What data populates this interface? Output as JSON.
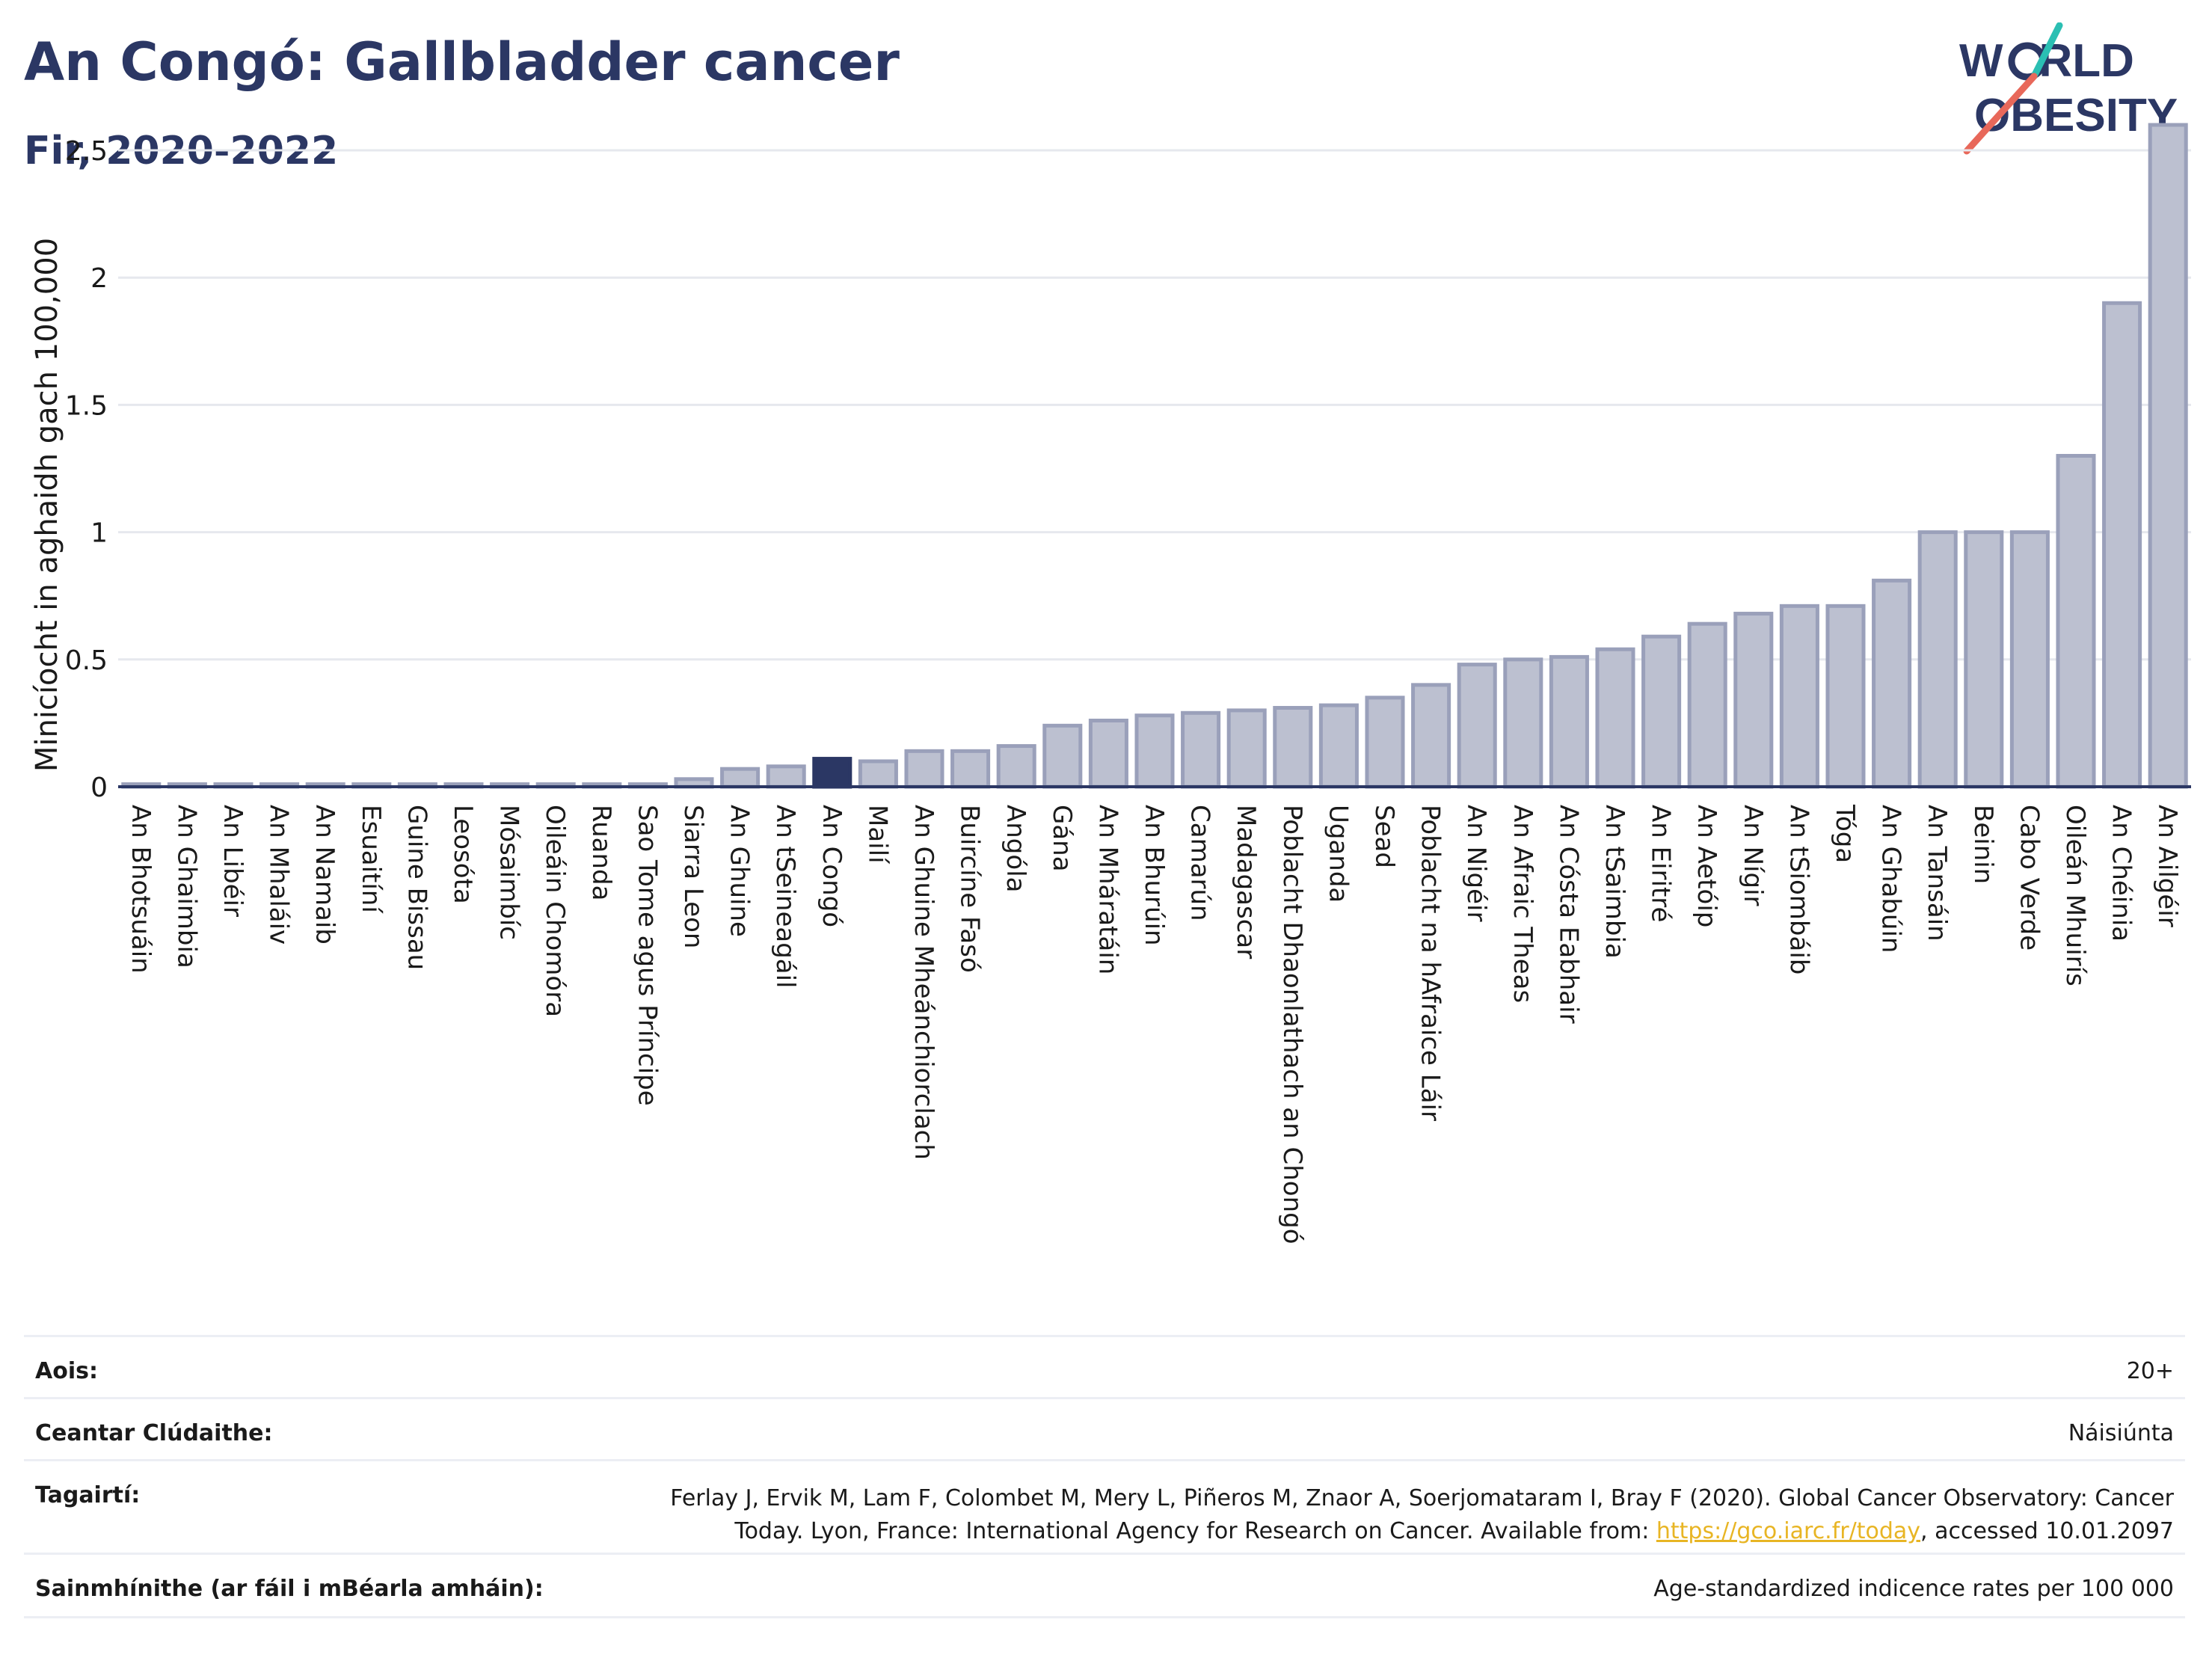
{
  "header": {
    "title": "An Congó: Gallbladder cancer",
    "subtitle": "Fir, 2020-2022"
  },
  "logo": {
    "line1_a": "W",
    "line1_b": "RLD",
    "line2_a": "O",
    "line2_b": "BESITY",
    "colors": {
      "text": "#2b3764",
      "teal": "#2bbfb3",
      "red": "#e8685a"
    }
  },
  "colors": {
    "bar": "#bcc0d0",
    "bar_stroke": "#9aa0ba",
    "highlight": "#2b3764",
    "grid": "#e6e8ee",
    "axis": "#2b3764"
  },
  "chart_data": {
    "type": "bar",
    "ylabel": "Minicíocht in aghaidh gach 100,000",
    "xlabel": "",
    "ylim": [
      0,
      2.65
    ],
    "yticks": [
      0,
      0.5,
      1,
      1.5,
      2,
      2.5
    ],
    "ytick_labels": [
      "0",
      "0.5",
      "1",
      "1.5",
      "2",
      "2.5"
    ],
    "grid": true,
    "highlight": "An Congó",
    "categories": [
      "An Bhotsuáin",
      "An Ghaimbia",
      "An Libéir",
      "An Mhaláiv",
      "An Namaib",
      "Esuaitíní",
      "Guine Bissau",
      "Leosóta",
      "Mósaimbíc",
      "Oileáin Chomóra",
      "Ruanda",
      "Sao Tome agus Príncipe",
      "Siarra Leon",
      "An Ghuine",
      "An tSeineagáil",
      "An Congó",
      "Mailí",
      "An Ghuine Mheánchiorclach",
      "Buircíne Fasó",
      "Angóla",
      "Gána",
      "An Mháratáin",
      "An Bhurúin",
      "Camarún",
      "Madagascar",
      "Poblacht Dhaonlathach an Chongó",
      "Uganda",
      "Sead",
      "Poblacht na hAfraice Láir",
      "An Nigéir",
      "An Afraic Theas",
      "An Cósta Eabhair",
      "An tSaimbia",
      "An Eiritré",
      "An Aetóip",
      "An Nígir",
      "An tSiombáib",
      "Tóga",
      "An Ghabúin",
      "An Tansáin",
      "Beinin",
      "Cabo Verde",
      "Oileán Mhuirís",
      "An Chéinia",
      "An Ailgéir"
    ],
    "values": [
      0.01,
      0.01,
      0.01,
      0.01,
      0.01,
      0.01,
      0.01,
      0.01,
      0.01,
      0.01,
      0.01,
      0.01,
      0.03,
      0.07,
      0.08,
      0.11,
      0.1,
      0.14,
      0.14,
      0.16,
      0.24,
      0.26,
      0.28,
      0.29,
      0.3,
      0.31,
      0.32,
      0.35,
      0.4,
      0.48,
      0.5,
      0.51,
      0.54,
      0.59,
      0.64,
      0.68,
      0.71,
      0.71,
      0.81,
      1.0,
      1.0,
      1.0,
      1.3,
      1.9,
      2.6
    ]
  },
  "info": {
    "age_label": "Aois:",
    "age_value": "20+",
    "coverage_label": "Ceantar Clúdaithe:",
    "coverage_value": "Náisiúnta",
    "refs_label": "Tagairtí:",
    "refs_line1": "Ferlay J, Ervik M, Lam F, Colombet M, Mery L, Piñeros M, Znaor A, Soerjomataram I, Bray F (2020). Global Cancer Observatory: Cancer",
    "refs_line2_pre": "Today. Lyon, France: International Agency for Research on Cancer. Available from: ",
    "refs_link": "https://gco.iarc.fr/today",
    "refs_line2_post": ", accessed 10.01.2097",
    "defs_label": "Sainmhínithe (ar fáil i mBéarla amháin):",
    "defs_value": "Age-standardized indicence rates per 100 000"
  }
}
